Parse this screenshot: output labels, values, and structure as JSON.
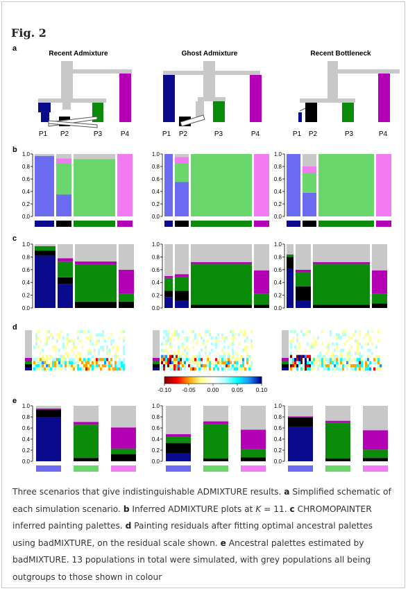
{
  "figure": {
    "title": "Fig. 2",
    "panel_labels": [
      "a",
      "b",
      "c",
      "d",
      "e"
    ],
    "scenarios": [
      "Recent Admixture",
      "Ghost Admixture",
      "Recent Bottleneck"
    ],
    "population_labels": [
      "P1",
      "P2",
      "P3",
      "P4"
    ],
    "y_ticks": [
      "0.0",
      "0.2",
      "0.4",
      "0.6",
      "0.8",
      "1.0"
    ],
    "colorbar_ticks": [
      "-0.10",
      "-0.05",
      "0.00",
      "0.05",
      "0.10"
    ],
    "colors": {
      "p1_dark": "#0a0a8c",
      "p1_light": "#6b6bf2",
      "p2_black": "#000000",
      "p3_green": "#0a8c0a",
      "p3_light": "#6bd66b",
      "p4_magenta": "#b400b4",
      "p4_light": "#f27af2",
      "grey": "#c8c8c8"
    }
  },
  "caption": {
    "intro": "Three scenarios that give indistinguishable ADMIXTURE results. ",
    "a_label": "a",
    "a_text": " Simplified schematic of each simulation scenario. ",
    "b_label": "b",
    "b_text1": " Inferred ADMIXTURE plots at ",
    "b_k": "K",
    "b_text2": " = 11. ",
    "c_label": "c",
    "c_text": " CHROMOPAINTER inferred painting palettes. ",
    "d_label": "d",
    "d_text": " Painting residuals after fitting optimal ancestral palettes using badMIXTURE, on the residual scale shown. ",
    "e_label": "e",
    "e_text": " Ancestral palettes estimated by badMIXTURE. 13 populations in total were simulated, with grey populations all being outgroups to those shown in colour"
  },
  "chart_data": [
    {
      "type": "bar",
      "panel": "e",
      "scenario": "Recent Admixture",
      "categories": [
        "P1",
        "P3",
        "P4"
      ],
      "series": [
        {
          "name": "P1",
          "values": [
            0.8,
            0.0,
            0.0
          ]
        },
        {
          "name": "P2",
          "values": [
            0.13,
            0.06,
            0.13
          ]
        },
        {
          "name": "P3",
          "values": [
            0.0,
            0.6,
            0.1
          ]
        },
        {
          "name": "P4",
          "values": [
            0.02,
            0.05,
            0.38
          ]
        },
        {
          "name": "outgroups",
          "values": [
            0.05,
            0.29,
            0.39
          ]
        }
      ],
      "ylim": [
        0,
        1
      ]
    },
    {
      "type": "bar",
      "panel": "e",
      "scenario": "Ghost Admixture",
      "categories": [
        "P1",
        "P3",
        "P4"
      ],
      "series": [
        {
          "name": "P1",
          "values": [
            0.15,
            0.0,
            0.0
          ]
        },
        {
          "name": "P2",
          "values": [
            0.18,
            0.05,
            0.07
          ]
        },
        {
          "name": "P3",
          "values": [
            0.12,
            0.62,
            0.15
          ]
        },
        {
          "name": "P4",
          "values": [
            0.04,
            0.05,
            0.35
          ]
        },
        {
          "name": "outgroups",
          "values": [
            0.51,
            0.28,
            0.43
          ]
        }
      ],
      "ylim": [
        0,
        1
      ]
    },
    {
      "type": "bar",
      "panel": "e",
      "scenario": "Recent Bottleneck",
      "categories": [
        "P1",
        "P3",
        "P4"
      ],
      "series": [
        {
          "name": "P1",
          "values": [
            0.62,
            0.0,
            0.0
          ]
        },
        {
          "name": "P2",
          "values": [
            0.17,
            0.05,
            0.06
          ]
        },
        {
          "name": "P3",
          "values": [
            0.0,
            0.64,
            0.15
          ]
        },
        {
          "name": "P4",
          "values": [
            0.02,
            0.04,
            0.35
          ]
        },
        {
          "name": "outgroups",
          "values": [
            0.19,
            0.27,
            0.44
          ]
        }
      ],
      "ylim": [
        0,
        1
      ]
    }
  ]
}
